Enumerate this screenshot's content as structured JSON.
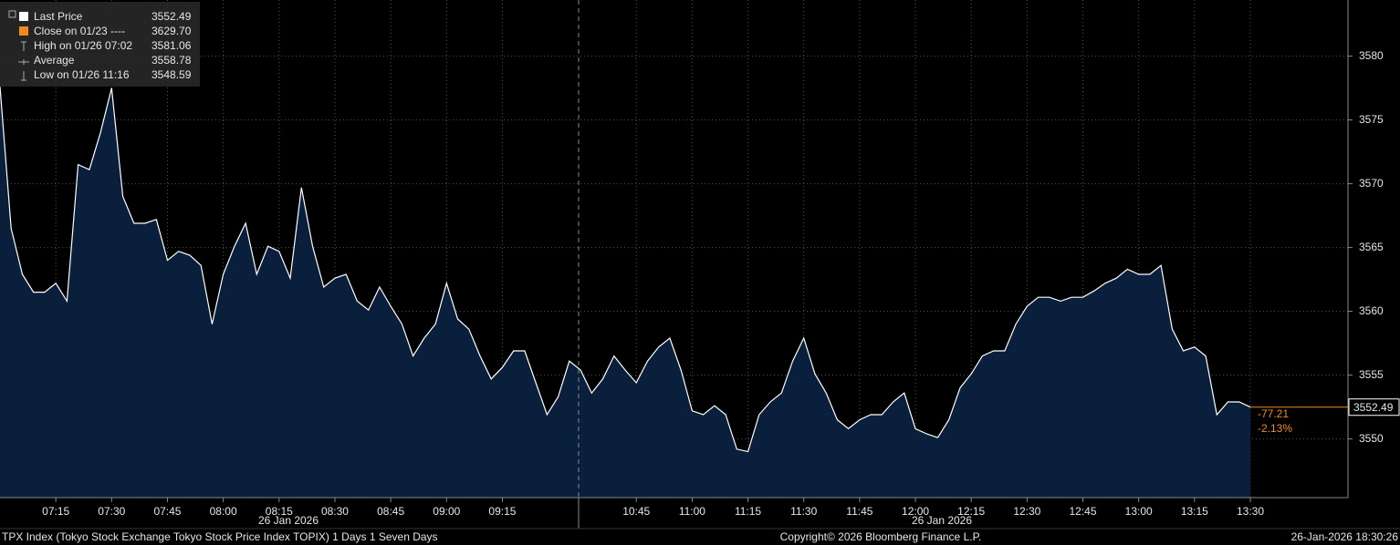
{
  "chart_data": {
    "type": "area",
    "x": [
      "07:00",
      "07:03",
      "07:06",
      "07:09",
      "07:12",
      "07:15",
      "07:18",
      "07:21",
      "07:24",
      "07:27",
      "07:30",
      "07:33",
      "07:36",
      "07:39",
      "07:42",
      "07:45",
      "07:48",
      "07:51",
      "07:54",
      "07:57",
      "08:00",
      "08:03",
      "08:06",
      "08:09",
      "08:12",
      "08:15",
      "08:18",
      "08:21",
      "08:24",
      "08:27",
      "08:30",
      "08:33",
      "08:36",
      "08:39",
      "08:42",
      "08:45",
      "08:48",
      "08:51",
      "08:54",
      "08:57",
      "09:00",
      "09:03",
      "09:06",
      "09:09",
      "09:12",
      "09:15",
      "09:18",
      "09:21",
      "09:24",
      "09:27",
      "09:30",
      "09:33",
      "10:30",
      "10:33",
      "10:36",
      "10:39",
      "10:42",
      "10:45",
      "10:48",
      "10:51",
      "10:54",
      "10:57",
      "11:00",
      "11:03",
      "11:06",
      "11:09",
      "11:12",
      "11:15",
      "11:18",
      "11:21",
      "11:24",
      "11:27",
      "11:30",
      "11:33",
      "11:36",
      "11:39",
      "11:42",
      "11:45",
      "11:48",
      "11:51",
      "11:54",
      "11:57",
      "12:00",
      "12:03",
      "12:06",
      "12:09",
      "12:12",
      "12:15",
      "12:18",
      "12:21",
      "12:24",
      "12:27",
      "12:30",
      "12:33",
      "12:36",
      "12:39",
      "12:42",
      "12:45",
      "12:48",
      "12:51",
      "12:54",
      "12:57",
      "13:00",
      "13:03",
      "13:06",
      "13:09",
      "13:12",
      "13:15",
      "13:18",
      "13:21",
      "13:24",
      "13:27",
      "13:30"
    ],
    "series": [
      {
        "name": "Last Price",
        "color": "#ffffff",
        "fill_color": "#0a1f3c",
        "values": [
          3577.6,
          3566.5,
          3562.9,
          3561.5,
          3561.5,
          3562.2,
          3560.8,
          3571.5,
          3571.1,
          3574,
          3577.5,
          3569,
          3566.9,
          3566.9,
          3567.2,
          3564,
          3564.7,
          3564.4,
          3563.6,
          3559,
          3562.9,
          3565.1,
          3566.9,
          3562.9,
          3565.1,
          3564.7,
          3562.6,
          3569.7,
          3565.1,
          3561.9,
          3562.6,
          3562.9,
          3560.8,
          3560.1,
          3561.9,
          3560.4,
          3559,
          3556.5,
          3557.9,
          3559,
          3562.2,
          3559.4,
          3558.6,
          3556.5,
          3554.7,
          3555.6,
          3556.9,
          3556.9,
          3554.4,
          3551.9,
          3553.3,
          3556.1,
          3555.4,
          3553.6,
          3554.7,
          3556.5,
          3555.4,
          3554.4,
          3556.1,
          3557.2,
          3557.9,
          3555.4,
          3552.2,
          3551.9,
          3552.6,
          3551.9,
          3549.2,
          3549,
          3551.9,
          3552.9,
          3553.6,
          3556.1,
          3557.9,
          3555.1,
          3553.6,
          3551.5,
          3550.8,
          3551.5,
          3551.9,
          3551.9,
          3552.9,
          3553.6,
          3550.8,
          3550.4,
          3550.1,
          3551.5,
          3554,
          3555.1,
          3556.5,
          3556.9,
          3556.9,
          3559,
          3560.4,
          3561.1,
          3561.1,
          3560.8,
          3561.1,
          3561.1,
          3561.6,
          3562.2,
          3562.6,
          3563.3,
          3562.9,
          3562.9,
          3563.6,
          3558.6,
          3556.9,
          3557.2,
          3556.5,
          3551.9,
          3552.9,
          3552.9,
          3552.49
        ]
      }
    ],
    "xticks": [
      "07:15",
      "07:30",
      "07:45",
      "08:00",
      "08:15",
      "08:30",
      "08:45",
      "09:00",
      "09:15",
      "10:45",
      "11:00",
      "11:15",
      "11:30",
      "11:45",
      "12:00",
      "12:15",
      "12:30",
      "12:45",
      "13:00",
      "13:15",
      "13:30"
    ],
    "date_label": "26 Jan 2026",
    "ylim": [
      3545.4,
      3584.4
    ],
    "yticks": [
      3550,
      3555,
      3560,
      3565,
      3570,
      3575,
      3580
    ],
    "grid": true,
    "legend": [
      {
        "label": "Last Price",
        "value": "3552.49"
      },
      {
        "label": "Close on 01/23 ----",
        "value": "3629.70"
      },
      {
        "label": "High on 01/26 07:02",
        "value": "3581.06"
      },
      {
        "label": "Average",
        "value": "3558.78"
      },
      {
        "label": "Low on 01/26 11:16",
        "value": "3548.59"
      }
    ],
    "last_price": 3552.49,
    "change": -77.21,
    "change_pct": {
      "value": -2.13,
      "label": "-2.13%"
    },
    "footer_left": "TPX Index (Tokyo Stock Exchange Tokyo Stock Price Index TOPIX) 1 Days 1 Seven Days",
    "footer_center": "Copyright© 2026 Bloomberg Finance L.P.",
    "footer_right": "26-Jan-2026 18:30:26"
  }
}
